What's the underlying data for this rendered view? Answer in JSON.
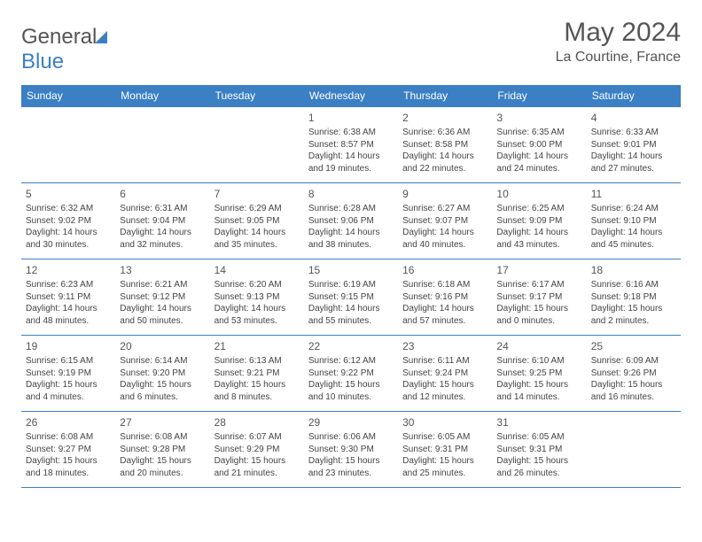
{
  "logo": {
    "part1": "General",
    "part2": "Blue"
  },
  "title": "May 2024",
  "subtitle": "La Courtine, France",
  "colors": {
    "header_bg": "#3b7fc4",
    "header_text": "#ffffff",
    "border": "#3b7fc4",
    "body_text": "#444444",
    "title_text": "#555555"
  },
  "day_headers": [
    "Sunday",
    "Monday",
    "Tuesday",
    "Wednesday",
    "Thursday",
    "Friday",
    "Saturday"
  ],
  "weeks": [
    [
      null,
      null,
      null,
      {
        "n": "1",
        "sr": "Sunrise: 6:38 AM",
        "ss": "Sunset: 8:57 PM",
        "dl": "Daylight: 14 hours and 19 minutes."
      },
      {
        "n": "2",
        "sr": "Sunrise: 6:36 AM",
        "ss": "Sunset: 8:58 PM",
        "dl": "Daylight: 14 hours and 22 minutes."
      },
      {
        "n": "3",
        "sr": "Sunrise: 6:35 AM",
        "ss": "Sunset: 9:00 PM",
        "dl": "Daylight: 14 hours and 24 minutes."
      },
      {
        "n": "4",
        "sr": "Sunrise: 6:33 AM",
        "ss": "Sunset: 9:01 PM",
        "dl": "Daylight: 14 hours and 27 minutes."
      }
    ],
    [
      {
        "n": "5",
        "sr": "Sunrise: 6:32 AM",
        "ss": "Sunset: 9:02 PM",
        "dl": "Daylight: 14 hours and 30 minutes."
      },
      {
        "n": "6",
        "sr": "Sunrise: 6:31 AM",
        "ss": "Sunset: 9:04 PM",
        "dl": "Daylight: 14 hours and 32 minutes."
      },
      {
        "n": "7",
        "sr": "Sunrise: 6:29 AM",
        "ss": "Sunset: 9:05 PM",
        "dl": "Daylight: 14 hours and 35 minutes."
      },
      {
        "n": "8",
        "sr": "Sunrise: 6:28 AM",
        "ss": "Sunset: 9:06 PM",
        "dl": "Daylight: 14 hours and 38 minutes."
      },
      {
        "n": "9",
        "sr": "Sunrise: 6:27 AM",
        "ss": "Sunset: 9:07 PM",
        "dl": "Daylight: 14 hours and 40 minutes."
      },
      {
        "n": "10",
        "sr": "Sunrise: 6:25 AM",
        "ss": "Sunset: 9:09 PM",
        "dl": "Daylight: 14 hours and 43 minutes."
      },
      {
        "n": "11",
        "sr": "Sunrise: 6:24 AM",
        "ss": "Sunset: 9:10 PM",
        "dl": "Daylight: 14 hours and 45 minutes."
      }
    ],
    [
      {
        "n": "12",
        "sr": "Sunrise: 6:23 AM",
        "ss": "Sunset: 9:11 PM",
        "dl": "Daylight: 14 hours and 48 minutes."
      },
      {
        "n": "13",
        "sr": "Sunrise: 6:21 AM",
        "ss": "Sunset: 9:12 PM",
        "dl": "Daylight: 14 hours and 50 minutes."
      },
      {
        "n": "14",
        "sr": "Sunrise: 6:20 AM",
        "ss": "Sunset: 9:13 PM",
        "dl": "Daylight: 14 hours and 53 minutes."
      },
      {
        "n": "15",
        "sr": "Sunrise: 6:19 AM",
        "ss": "Sunset: 9:15 PM",
        "dl": "Daylight: 14 hours and 55 minutes."
      },
      {
        "n": "16",
        "sr": "Sunrise: 6:18 AM",
        "ss": "Sunset: 9:16 PM",
        "dl": "Daylight: 14 hours and 57 minutes."
      },
      {
        "n": "17",
        "sr": "Sunrise: 6:17 AM",
        "ss": "Sunset: 9:17 PM",
        "dl": "Daylight: 15 hours and 0 minutes."
      },
      {
        "n": "18",
        "sr": "Sunrise: 6:16 AM",
        "ss": "Sunset: 9:18 PM",
        "dl": "Daylight: 15 hours and 2 minutes."
      }
    ],
    [
      {
        "n": "19",
        "sr": "Sunrise: 6:15 AM",
        "ss": "Sunset: 9:19 PM",
        "dl": "Daylight: 15 hours and 4 minutes."
      },
      {
        "n": "20",
        "sr": "Sunrise: 6:14 AM",
        "ss": "Sunset: 9:20 PM",
        "dl": "Daylight: 15 hours and 6 minutes."
      },
      {
        "n": "21",
        "sr": "Sunrise: 6:13 AM",
        "ss": "Sunset: 9:21 PM",
        "dl": "Daylight: 15 hours and 8 minutes."
      },
      {
        "n": "22",
        "sr": "Sunrise: 6:12 AM",
        "ss": "Sunset: 9:22 PM",
        "dl": "Daylight: 15 hours and 10 minutes."
      },
      {
        "n": "23",
        "sr": "Sunrise: 6:11 AM",
        "ss": "Sunset: 9:24 PM",
        "dl": "Daylight: 15 hours and 12 minutes."
      },
      {
        "n": "24",
        "sr": "Sunrise: 6:10 AM",
        "ss": "Sunset: 9:25 PM",
        "dl": "Daylight: 15 hours and 14 minutes."
      },
      {
        "n": "25",
        "sr": "Sunrise: 6:09 AM",
        "ss": "Sunset: 9:26 PM",
        "dl": "Daylight: 15 hours and 16 minutes."
      }
    ],
    [
      {
        "n": "26",
        "sr": "Sunrise: 6:08 AM",
        "ss": "Sunset: 9:27 PM",
        "dl": "Daylight: 15 hours and 18 minutes."
      },
      {
        "n": "27",
        "sr": "Sunrise: 6:08 AM",
        "ss": "Sunset: 9:28 PM",
        "dl": "Daylight: 15 hours and 20 minutes."
      },
      {
        "n": "28",
        "sr": "Sunrise: 6:07 AM",
        "ss": "Sunset: 9:29 PM",
        "dl": "Daylight: 15 hours and 21 minutes."
      },
      {
        "n": "29",
        "sr": "Sunrise: 6:06 AM",
        "ss": "Sunset: 9:30 PM",
        "dl": "Daylight: 15 hours and 23 minutes."
      },
      {
        "n": "30",
        "sr": "Sunrise: 6:05 AM",
        "ss": "Sunset: 9:31 PM",
        "dl": "Daylight: 15 hours and 25 minutes."
      },
      {
        "n": "31",
        "sr": "Sunrise: 6:05 AM",
        "ss": "Sunset: 9:31 PM",
        "dl": "Daylight: 15 hours and 26 minutes."
      },
      null
    ]
  ]
}
